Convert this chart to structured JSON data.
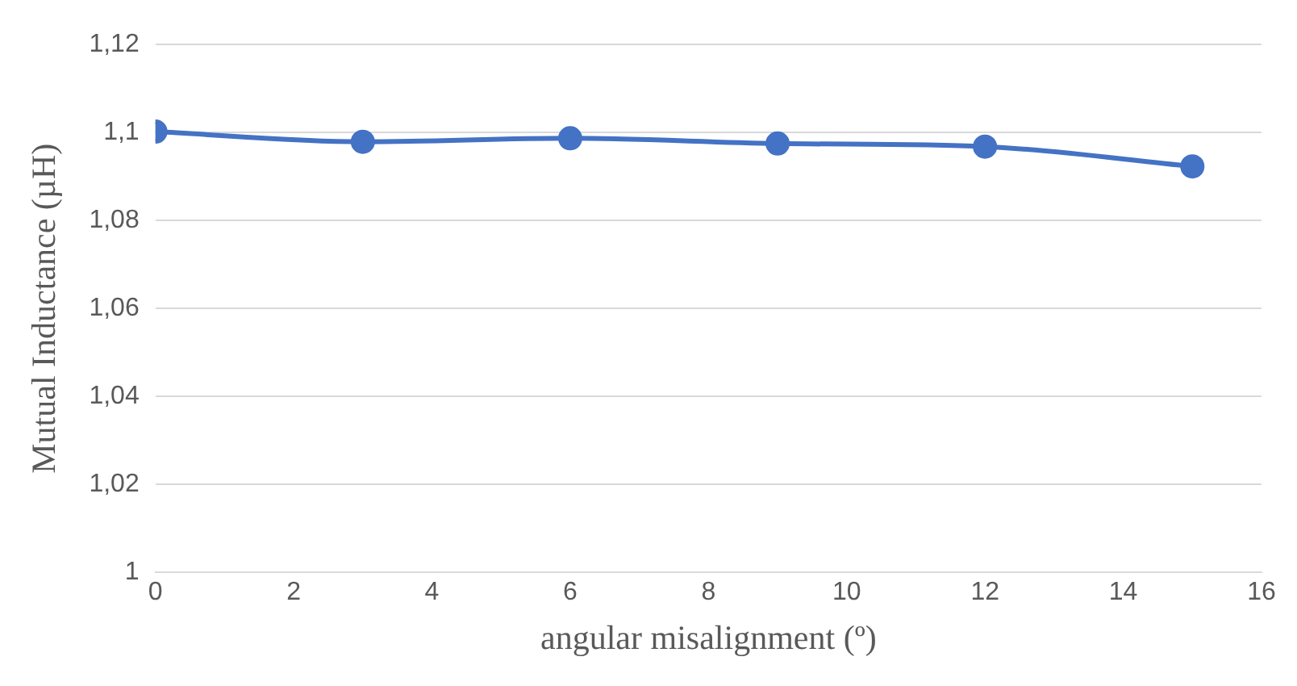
{
  "chart_data": {
    "type": "line",
    "xlabel": "angular misalignment (º)",
    "ylabel": "Mutual Inductance (µH)",
    "x": [
      0,
      3,
      6,
      9,
      12,
      15
    ],
    "series": [
      {
        "color": "#4472c4",
        "values": [
          1.1002,
          1.0979,
          1.0987,
          1.0975,
          1.0968,
          1.0923
        ]
      }
    ],
    "xlim": [
      0,
      16
    ],
    "xticks": [
      0,
      2,
      4,
      6,
      8,
      10,
      12,
      14,
      16
    ],
    "ylim": [
      1,
      1.12
    ],
    "yticks": [
      1,
      {
        "value": 1.02,
        "label": "1,02"
      },
      {
        "value": 1.04,
        "label": "1,04"
      },
      {
        "value": 1.06,
        "label": "1,06"
      },
      {
        "value": 1.08,
        "label": "1,08"
      },
      {
        "value": 1.1,
        "label": "1,1"
      },
      {
        "value": 1.12,
        "label": "1,12"
      }
    ],
    "grid": "y",
    "marker": "circle",
    "line_style": "solid",
    "legend": false
  }
}
